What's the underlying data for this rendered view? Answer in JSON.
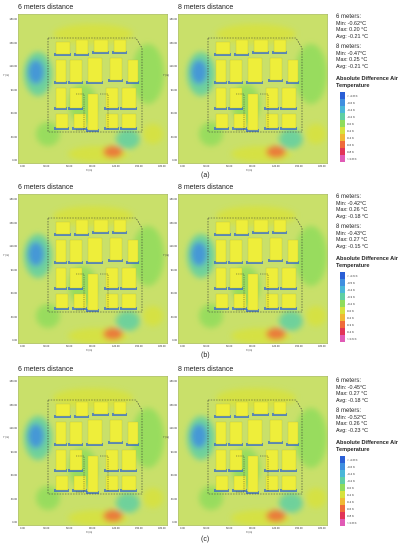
{
  "panels": [
    {
      "caption": "(a)",
      "left_title": "6 meters distance",
      "right_title": "8 meters distance",
      "stats6": {
        "head": "6 meters:",
        "min": "Min: -0.62°C",
        "max": "Max: 0.20 °C",
        "avg": "Avg: -0.21 °C"
      },
      "stats8": {
        "head": "8 meters:",
        "min": "Min: -0.47°C",
        "max": "Max: 0.25 °C",
        "avg": "Avg: -0.21 °C"
      },
      "legend_title": "Absolute Difference Air Temperature",
      "legend": [
        "< -0.8 K",
        "-0.6 K",
        "-0.4 K",
        "-0.2 K",
        "0.0 K",
        "0.2 K",
        "0.4 K",
        "0.6 K",
        "0.8 K",
        "> 0.8 K"
      ]
    },
    {
      "caption": "(b)",
      "left_title": "6 meters distance",
      "right_title": "8 meters distance",
      "stats6": {
        "head": "6 meters:",
        "min": "Min: -0.42°C",
        "max": "Max: 0.26 °C",
        "avg": "Avg: -0.18 °C"
      },
      "stats8": {
        "head": "8 meters:",
        "min": "Min: -0.43°C",
        "max": "Max: 0.27 °C",
        "avg": "Avg: -0.15 °C"
      },
      "legend_title": "Absolute Difference Air Temperature",
      "legend": [
        "< -0.6 K",
        "-0.5 K",
        "-0.4 K",
        "-0.3 K",
        "-0.2 K",
        "0.0 K",
        "0.2 K",
        "0.3 K",
        "0.4 K",
        "> 0.6 K"
      ]
    },
    {
      "caption": "(c)",
      "left_title": "6 meters distance",
      "right_title": "8 meters distance",
      "stats6": {
        "head": "6 meters:",
        "min": "Min: -0.45°C",
        "max": "Max: 0.27 °C",
        "avg": "Avg: -0.18 °C"
      },
      "stats8": {
        "head": "8 meters:",
        "min": "Min: -0.52°C",
        "max": "Max: 0.26 °C",
        "avg": "Avg: -0.23 °C"
      },
      "legend_title": "Absolute Difference Air Temperature",
      "legend": [
        "< -0.8 K",
        "-0.6 K",
        "-0.4 K",
        "-0.2 K",
        "0.0 K",
        "0.2 K",
        "0.4 K",
        "0.6 K",
        "0.8 K",
        "> 0.8 K"
      ]
    }
  ],
  "axis": {
    "y_ticks": [
      "180.00",
      "150.00",
      "120.00",
      "90.00",
      "60.00",
      "30.00",
      "0.00"
    ],
    "x_ticks": [
      "0.00",
      "30.00",
      "60.00",
      "90.00",
      "120.00",
      "150.00",
      "180.00"
    ],
    "y_label": "Y (m)",
    "x_label": "X (m)"
  },
  "legend_colors": [
    "#2a5fd6",
    "#3f8fe0",
    "#49b7d8",
    "#5fcfa3",
    "#8fdc5c",
    "#d7e23c",
    "#f0b833",
    "#ef6a3a",
    "#e23357",
    "#e05ab5"
  ]
}
